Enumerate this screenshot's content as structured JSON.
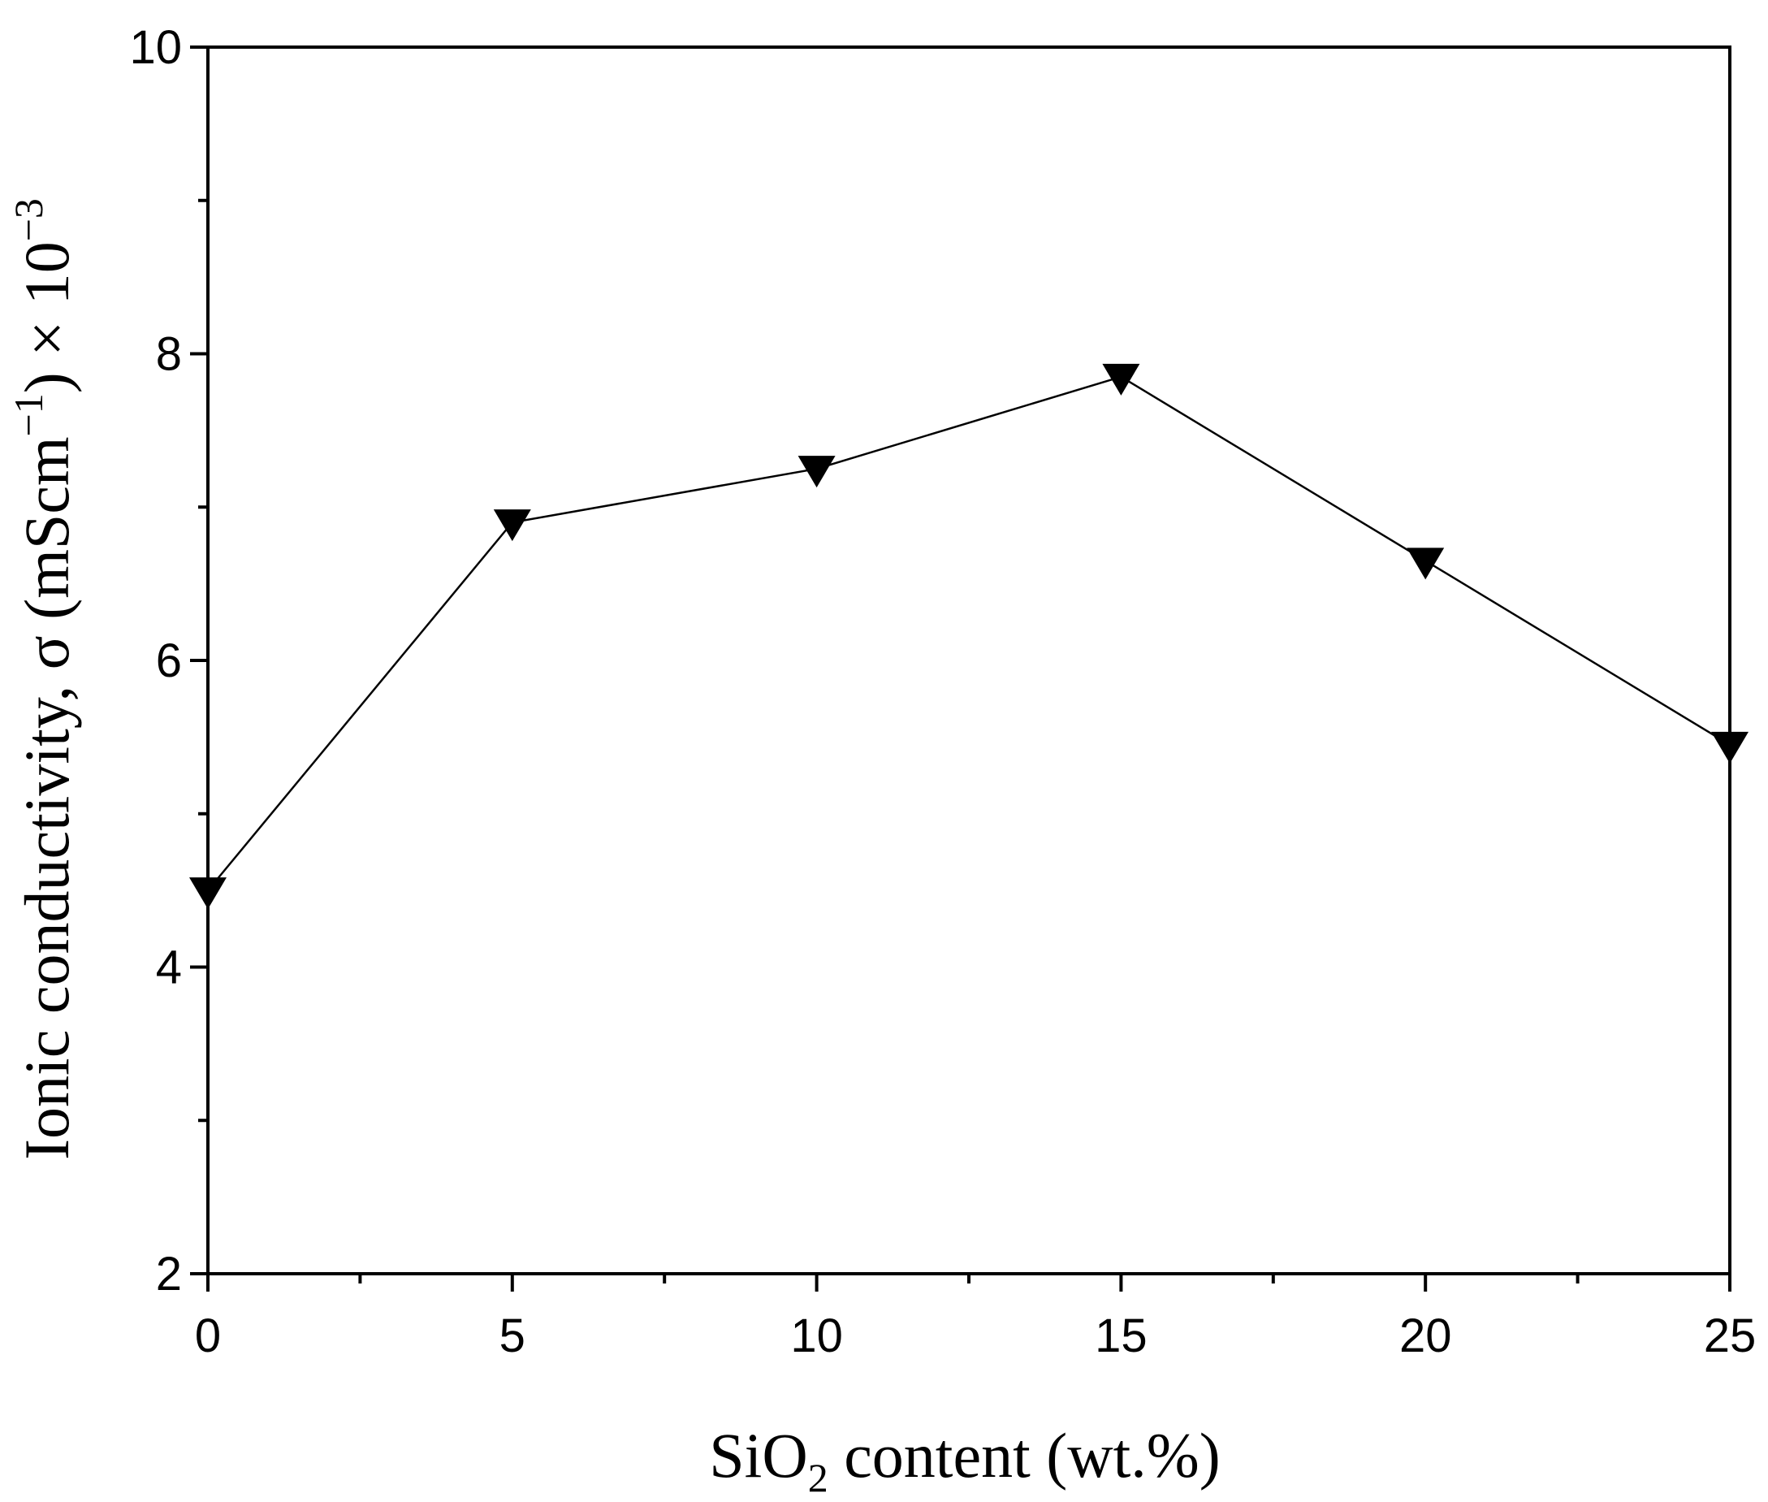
{
  "chart_data": {
    "type": "line",
    "xlabel": {
      "prefix": "SiO",
      "subscript": "2",
      "suffix": " content (wt.%)"
    },
    "ylabel": {
      "text": "Ionic conductivity, σ (mScm",
      "unit_exponent": "−1",
      "multiplier": ") × 10",
      "multiplier_exponent": "−3"
    },
    "xlim": [
      0,
      25
    ],
    "ylim": [
      2,
      10
    ],
    "x_ticks": [
      0,
      5,
      10,
      15,
      20,
      25
    ],
    "x_tick_labels": [
      "0",
      "5",
      "10",
      "15",
      "20",
      "25"
    ],
    "x_minor_ticks": [
      2.5,
      7.5,
      12.5,
      17.5,
      22.5
    ],
    "y_ticks": [
      2,
      4,
      6,
      8,
      10
    ],
    "y_tick_labels": [
      "2",
      "4",
      "6",
      "8",
      "10"
    ],
    "y_minor_ticks": [
      3,
      5,
      7,
      9
    ],
    "grid": false,
    "legend": "none",
    "marker": "down-triangle",
    "color": "#000000",
    "series": [
      {
        "x": [
          0,
          5,
          10,
          15,
          20,
          25
        ],
        "y": [
          4.5,
          6.9,
          7.25,
          7.85,
          6.65,
          5.45
        ]
      }
    ]
  }
}
